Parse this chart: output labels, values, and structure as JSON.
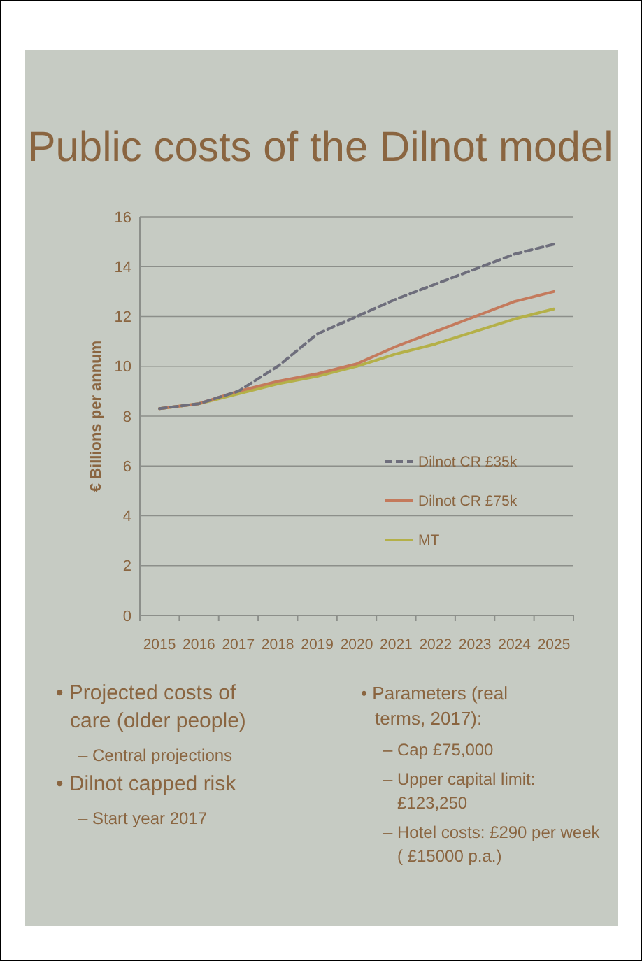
{
  "chart_data": {
    "type": "line",
    "title": "Public costs of the Dilnot model",
    "ylabel": "€ Billions per annum",
    "categories": [
      "2015",
      "2016",
      "2017",
      "2018",
      "2019",
      "2020",
      "2021",
      "2022",
      "2023",
      "2024",
      "2025"
    ],
    "series": [
      {
        "name": "Dilnot CR £35k",
        "color": "#6e6e7c",
        "line_style": "dashed",
        "values": [
          8.3,
          8.5,
          9.0,
          10.0,
          11.3,
          12.0,
          12.7,
          13.3,
          13.9,
          14.5,
          14.9
        ]
      },
      {
        "name": "Dilnot CR £75k",
        "color": "#c47a5c",
        "line_style": "solid",
        "values": [
          8.3,
          8.5,
          9.0,
          9.4,
          9.7,
          10.1,
          10.8,
          11.4,
          12.0,
          12.6,
          13.0
        ]
      },
      {
        "name": "MT",
        "color": "#b4b048",
        "line_style": "solid",
        "values": [
          8.3,
          8.5,
          8.9,
          9.3,
          9.6,
          10.0,
          10.5,
          10.9,
          11.4,
          11.9,
          12.3
        ]
      }
    ],
    "ylim": [
      0,
      16
    ],
    "yticks": [
      0,
      2,
      4,
      6,
      8,
      10,
      12,
      14,
      16
    ],
    "grid": "y",
    "legend": "right",
    "marker": "none",
    "annotations": [
      "• Projected costs of care (older people)",
      "– Central projections",
      "• Dilnot capped risk",
      "– Start year 2017",
      "• Parameters (real terms, 2017):",
      "– Cap £75,000",
      "– Upper capital limit: £123,250",
      "– Hotel costs: £290 per week ( £15000 p.a.)"
    ]
  }
}
